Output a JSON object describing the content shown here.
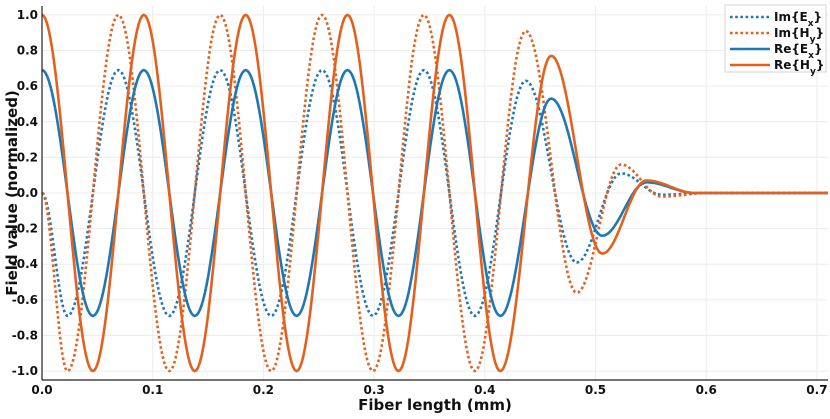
{
  "chart_data": {
    "type": "line",
    "title": "",
    "xlabel": "Fiber length (mm)",
    "ylabel": "Field value (normalized)",
    "xlim": [
      0.0,
      0.71
    ],
    "ylim": [
      -1.05,
      1.05
    ],
    "x_ticks": [
      "0.0",
      "0.1",
      "0.2",
      "0.3",
      "0.4",
      "0.5",
      "0.6",
      "0.7"
    ],
    "y_ticks": [
      "-1.0",
      "-0.8",
      "-0.6",
      "-0.4",
      "-0.2",
      "0.0",
      "0.2",
      "0.4",
      "0.6",
      "0.8",
      "1.0"
    ],
    "grid": true,
    "legend_position": "top-right",
    "series": [
      {
        "name": "Im{Ex}",
        "legend_main": "Im{E",
        "legend_sub": "x",
        "legend_tail": "}",
        "style": "dotted",
        "color": "#1f77b4",
        "amplitude": 0.69,
        "x": [
          0.0,
          0.023,
          0.069,
          0.115,
          0.161,
          0.207,
          0.253,
          0.299,
          0.345,
          0.391,
          0.437,
          0.483,
          0.523,
          0.56,
          0.6,
          0.71
        ],
        "y": [
          0.0,
          -0.69,
          0.69,
          -0.69,
          0.69,
          -0.69,
          0.69,
          -0.69,
          0.69,
          -0.69,
          0.63,
          -0.39,
          0.11,
          -0.01,
          0.0,
          0.0
        ]
      },
      {
        "name": "Im{Hy}",
        "legend_main": "Im{H",
        "legend_sub": "y",
        "legend_tail": "}",
        "style": "dotted",
        "color": "#e2611f",
        "amplitude": 1.0,
        "x": [
          0.0,
          0.023,
          0.069,
          0.115,
          0.161,
          0.207,
          0.253,
          0.299,
          0.345,
          0.391,
          0.437,
          0.483,
          0.523,
          0.56,
          0.6,
          0.71
        ],
        "y": [
          0.0,
          -1.0,
          1.0,
          -1.0,
          1.0,
          -1.0,
          1.0,
          -1.0,
          1.0,
          -1.0,
          0.91,
          -0.56,
          0.16,
          -0.02,
          0.0,
          0.0
        ]
      },
      {
        "name": "Re{Ex}",
        "legend_main": "Re{E",
        "legend_sub": "x",
        "legend_tail": "}",
        "style": "solid",
        "color": "#1f77b4",
        "amplitude": 0.69,
        "x": [
          0.0,
          0.046,
          0.092,
          0.138,
          0.184,
          0.23,
          0.276,
          0.322,
          0.368,
          0.414,
          0.46,
          0.506,
          0.546,
          0.59,
          0.71
        ],
        "y": [
          0.69,
          -0.69,
          0.69,
          -0.69,
          0.69,
          -0.69,
          0.69,
          -0.69,
          0.69,
          -0.69,
          0.53,
          -0.24,
          0.06,
          0.0,
          0.0
        ]
      },
      {
        "name": "Re{Hy}",
        "legend_main": "Re{H",
        "legend_sub": "y",
        "legend_tail": "}",
        "style": "solid",
        "color": "#e2611f",
        "amplitude": 1.0,
        "x": [
          0.0,
          0.046,
          0.092,
          0.138,
          0.184,
          0.23,
          0.276,
          0.322,
          0.368,
          0.414,
          0.46,
          0.506,
          0.546,
          0.59,
          0.71
        ],
        "y": [
          1.0,
          -1.0,
          1.0,
          -1.0,
          1.0,
          -1.0,
          1.0,
          -1.0,
          1.0,
          -1.0,
          0.77,
          -0.34,
          0.07,
          0.0,
          0.0
        ]
      }
    ]
  }
}
